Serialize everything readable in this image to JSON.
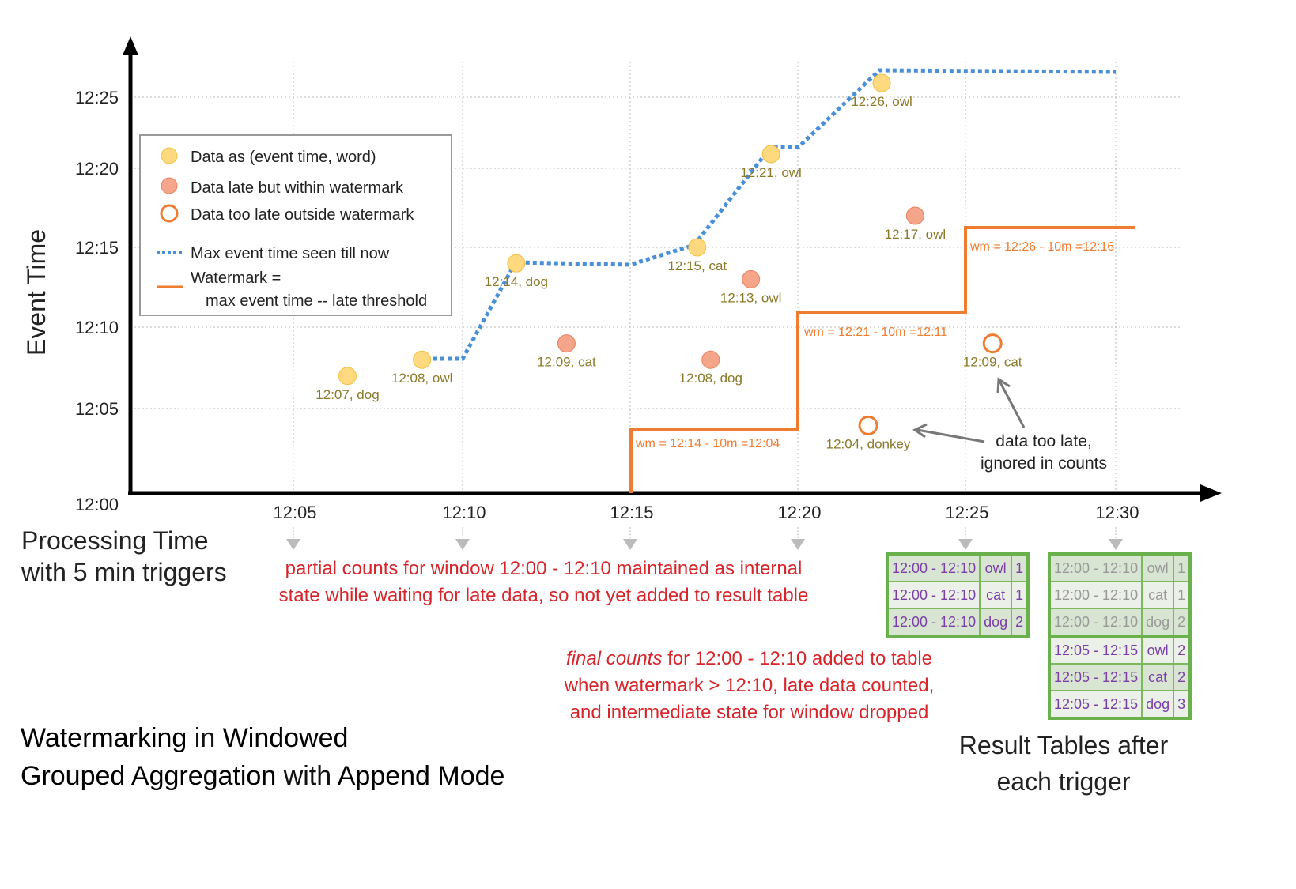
{
  "axes": {
    "y_label": "Event Time",
    "y_ticks": [
      "12:00",
      "12:05",
      "12:10",
      "12:15",
      "12:20",
      "12:25"
    ],
    "x_ticks": [
      "12:05",
      "12:10",
      "12:15",
      "12:20",
      "12:25",
      "12:30"
    ],
    "x_label_line1": "Processing Time",
    "x_label_line2": "with 5 min triggers"
  },
  "legend": {
    "data": "Data as (event time, word)",
    "late": "Data late but within watermark",
    "too_late": "Data too late outside watermark",
    "max": "Max event time seen till now",
    "wm1": "Watermark =",
    "wm2": "max event time -- late threshold"
  },
  "colors": {
    "on_time": "#ffd980",
    "late": "#f4a58a",
    "too_late": "#ee7d31",
    "max_line": "#4a90d9",
    "watermark": "#ee7d31",
    "label": "#8a7a2a"
  },
  "points": [
    {
      "label": "12:07, dog",
      "type": "on_time",
      "proc": 6.6,
      "event": 7
    },
    {
      "label": "12:08, owl",
      "type": "on_time",
      "proc": 8.8,
      "event": 8
    },
    {
      "label": "12:14, dog",
      "type": "on_time",
      "proc": 11.6,
      "event": 14
    },
    {
      "label": "12:09, cat",
      "type": "late",
      "proc": 13.1,
      "event": 9
    },
    {
      "label": "12:15, cat",
      "type": "on_time",
      "proc": 17.0,
      "event": 15
    },
    {
      "label": "12:08, dog",
      "type": "late",
      "proc": 17.4,
      "event": 8
    },
    {
      "label": "12:13, owl",
      "type": "late",
      "proc": 18.6,
      "event": 13
    },
    {
      "label": "12:21, owl",
      "type": "on_time",
      "proc": 19.2,
      "event": 21
    },
    {
      "label": "12:26, owl",
      "type": "on_time",
      "proc": 22.5,
      "event": 26
    },
    {
      "label": "12:04, donkey",
      "type": "too_late",
      "proc": 22.1,
      "event": 4
    },
    {
      "label": "12:17, owl",
      "type": "late",
      "proc": 23.5,
      "event": 17
    },
    {
      "label": "12:09, cat",
      "type": "too_late",
      "proc": 25.9,
      "event": 9
    }
  ],
  "watermarks": [
    "wm = 12:14 - 10m =12:04",
    "wm = 12:21 - 10m =12:11",
    "wm = 12:26 - 10m =12:16"
  ],
  "annotations": {
    "too_late_1": "data too late,",
    "too_late_2": "ignored in counts",
    "partial_1": "partial counts for window 12:00 - 12:10 maintained as internal",
    "partial_2": "state while waiting for late data, so not yet added  to result table",
    "final_em": "final counts",
    "final_1": " for 12:00 - 12:10 added to table",
    "final_2": "when watermark > 12:10, late data counted,",
    "final_3": "and intermediate state for window dropped"
  },
  "title": {
    "w1": "Watermarking",
    "w2": " in ",
    "w3": "Windowed",
    "w4": "Grouped Aggregation",
    "w5": " with ",
    "w6": "Append Mode"
  },
  "result_caption": {
    "line1": "Result Tables after",
    "line2": "each trigger"
  },
  "table_25": [
    [
      "12:00 - 12:10",
      "owl",
      "1"
    ],
    [
      "12:00 - 12:10",
      "cat",
      "1"
    ],
    [
      "12:00 - 12:10",
      "dog",
      "2"
    ]
  ],
  "table_30": [
    [
      "12:00 - 12:10",
      "owl",
      "1"
    ],
    [
      "12:00 - 12:10",
      "cat",
      "1"
    ],
    [
      "12:00 - 12:10",
      "dog",
      "2"
    ],
    [
      "12:05 - 12:15",
      "owl",
      "2"
    ],
    [
      "12:05 - 12:15",
      "cat",
      "2"
    ],
    [
      "12:05 - 12:15",
      "dog",
      "3"
    ]
  ]
}
